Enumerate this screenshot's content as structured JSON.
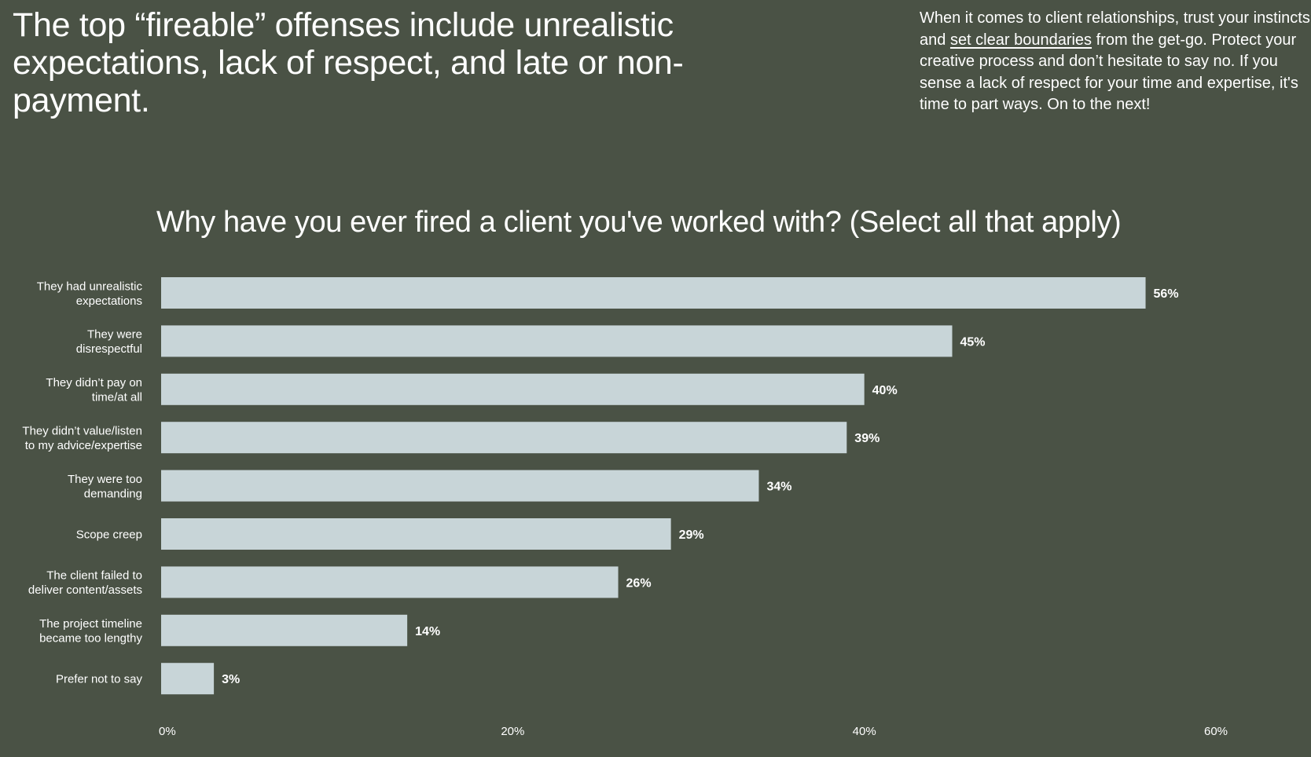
{
  "header": {
    "headline": "The top “fireable” offenses include unrealistic expectations, lack of respect, and late or non-payment.",
    "intro_before": "When it comes to client relationships, trust your instincts and ",
    "intro_link": "set clear boundaries",
    "intro_after": " from the get-go. Protect your creative process and don’t hesitate to say no. If you sense a lack of respect for your time and expertise, it's time to part ways. On to the next!"
  },
  "colors": {
    "background": "#4a5245",
    "bar": "#c8d5d8",
    "text": "#ffffff"
  },
  "chart_data": {
    "type": "bar",
    "orientation": "horizontal",
    "title": "Why have you ever fired a client you've worked with? (Select all that apply)",
    "categories": [
      [
        "They had unrealistic",
        "expectations"
      ],
      [
        "They were",
        "disrespectful"
      ],
      [
        "They didn’t pay on",
        "time/at all"
      ],
      [
        "They didn’t value/listen",
        "to my advice/expertise"
      ],
      [
        "They were too",
        "demanding"
      ],
      [
        "Scope creep"
      ],
      [
        "The client failed to",
        "deliver content/assets"
      ],
      [
        "The project timeline",
        "became too lengthy"
      ],
      [
        "Prefer not to say"
      ]
    ],
    "values": [
      56,
      45,
      40,
      39,
      34,
      29,
      26,
      14,
      3
    ],
    "value_labels": [
      "56%",
      "45%",
      "40%",
      "39%",
      "34%",
      "29%",
      "26%",
      "14%",
      "3%"
    ],
    "xlim": [
      0,
      60
    ],
    "xticks": [
      0,
      20,
      40,
      60
    ],
    "xtick_labels": [
      "0%",
      "20%",
      "40%",
      "60%"
    ],
    "grid": false,
    "legend": "none"
  }
}
